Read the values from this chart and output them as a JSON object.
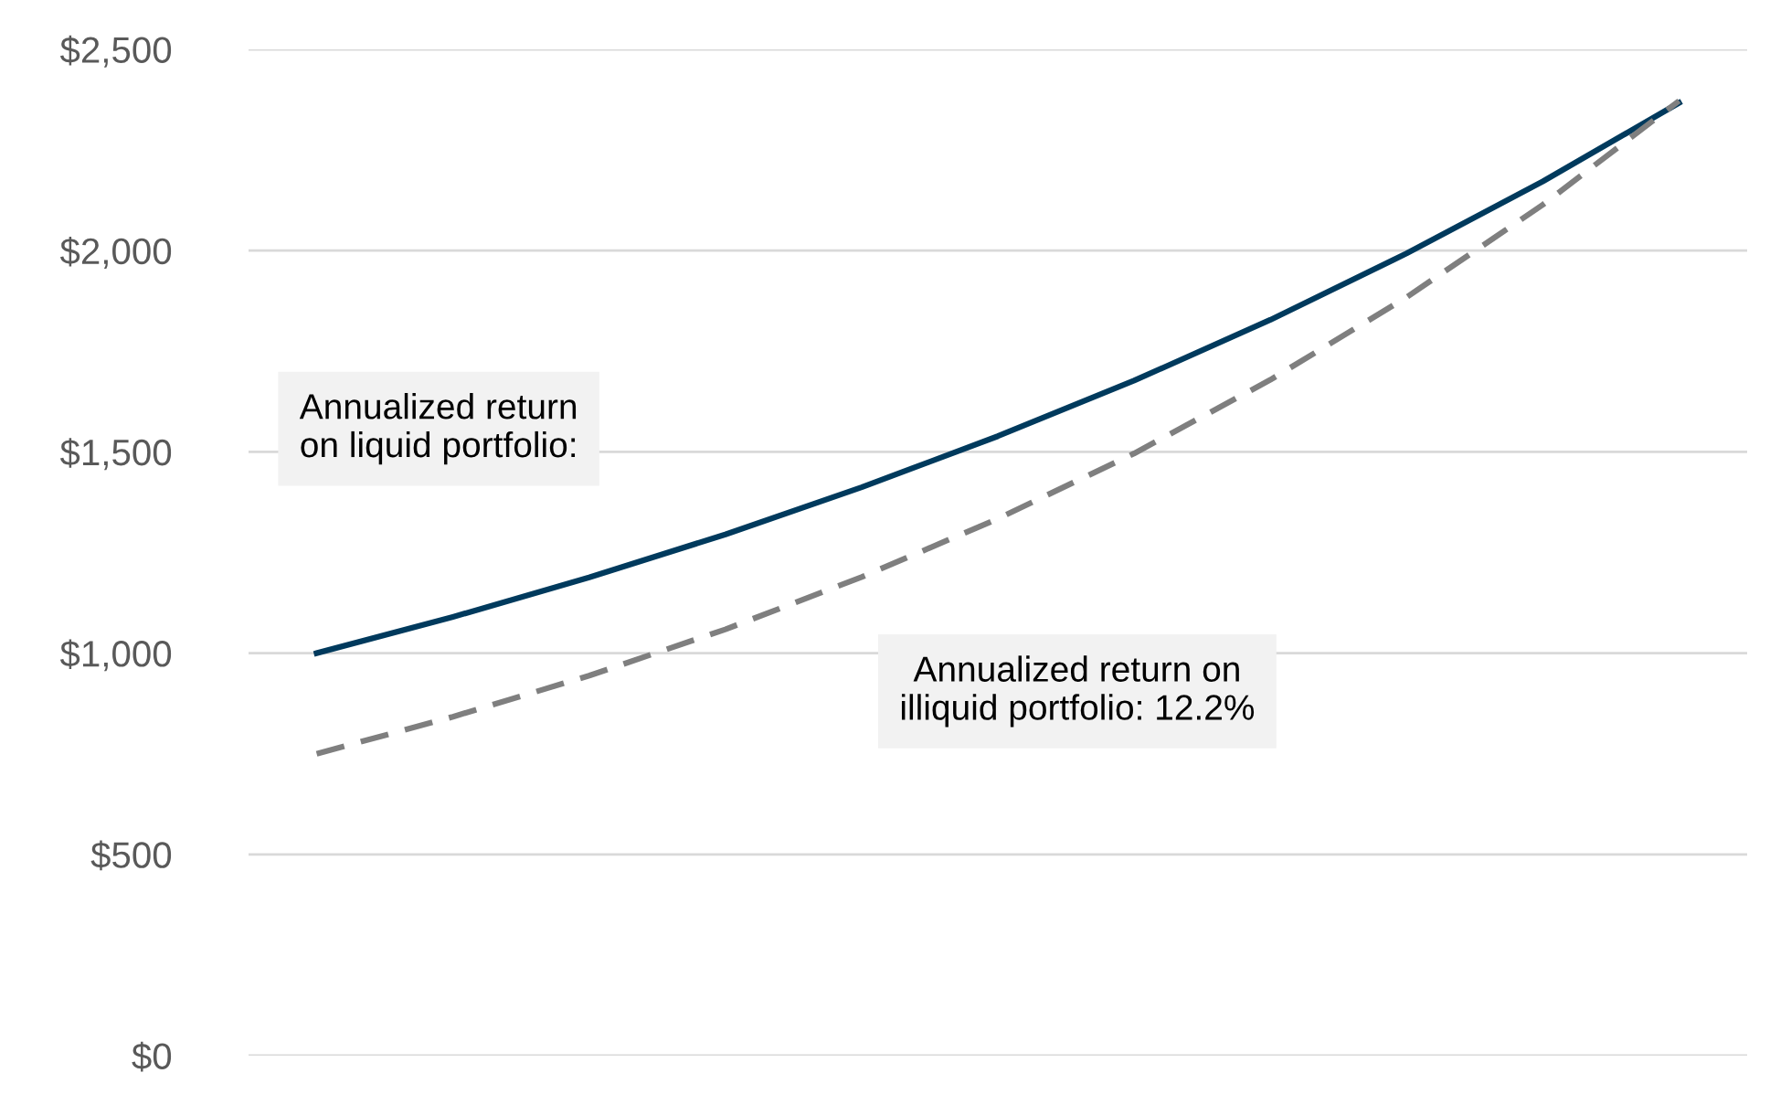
{
  "chart_data": {
    "type": "line",
    "categories": [
      null,
      null,
      null,
      null,
      null,
      null,
      null,
      null,
      null,
      null,
      null
    ],
    "series": [
      {
        "color": "#003a5d",
        "line_style": "solid",
        "values": [
          1000,
          1090,
          1188,
          1295,
          1412,
          1539,
          1677,
          1828,
          1993,
          2172,
          2367
        ]
      },
      {
        "color": "#7f7f7f",
        "line_style": "dashed",
        "values": [
          750,
          842,
          944,
          1059,
          1189,
          1334,
          1496,
          1679,
          1884,
          2114,
          2372
        ]
      }
    ],
    "ylim": [
      0,
      2500
    ],
    "yticks": [
      {
        "value": 0,
        "label": "$0"
      },
      {
        "value": 500,
        "label": "$500"
      },
      {
        "value": 1000,
        "label": "$1,000"
      },
      {
        "value": 1500,
        "label": "$1,500"
      },
      {
        "value": 2000,
        "label": "$2,000"
      },
      {
        "value": 2500,
        "label": "$2,500"
      }
    ],
    "grid": "y",
    "legend": false,
    "marker": "none",
    "annotations": [
      "Annualized return\non liquid portfolio:",
      "Annualized return on\nilliquid portfolio: 12.2%"
    ]
  }
}
